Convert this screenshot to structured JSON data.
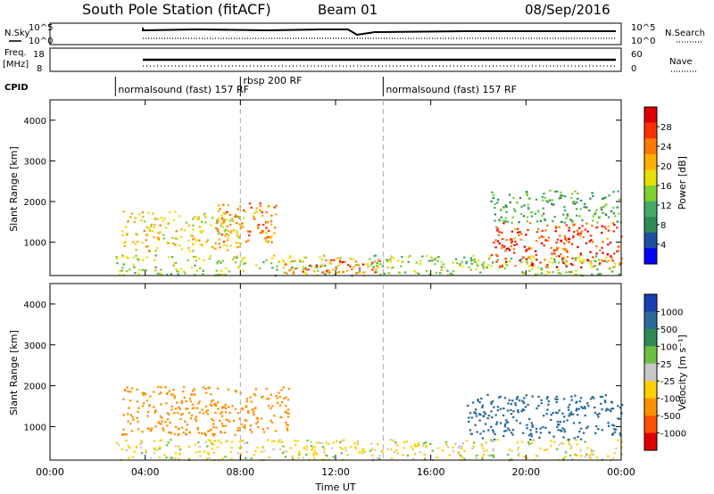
{
  "header": {
    "title": "South Pole Station (fitACF)",
    "beam": "Beam 01",
    "date": "08/Sep/2016"
  },
  "panels": {
    "nsky": {
      "left_label": "N.Sky",
      "right_label": "N.Search",
      "left_ticks": [
        "10^5",
        "10^0"
      ],
      "right_ticks": [
        "10^5",
        "10^0"
      ]
    },
    "freq": {
      "left_label_1": "Freq.",
      "left_label_2": "[MHz]",
      "right_label": "Nave",
      "left_ticks": [
        "18",
        "8"
      ],
      "right_ticks": [
        "60",
        "0"
      ]
    },
    "cpid": {
      "label": "CPID",
      "segments": [
        {
          "start_hour": 2.75,
          "text": "normalsound (fast) 157 RF"
        },
        {
          "start_hour": 8.0,
          "text": "rbsp 200 RF"
        },
        {
          "start_hour": 14.0,
          "text": "normalsound (fast) 157 RF"
        }
      ]
    }
  },
  "power_panel": {
    "ylabel": "Slant Range [km]",
    "yticks": [
      "1000",
      "2000",
      "3000",
      "4000"
    ],
    "colorbar": {
      "label": "Power [dB]",
      "ticks": [
        "4",
        "8",
        "12",
        "16",
        "20",
        "24",
        "28"
      ],
      "colors": [
        "#0000ff",
        "#1f4fa0",
        "#2e8b57",
        "#44aa66",
        "#7fd030",
        "#e8e000",
        "#ffb000",
        "#ff7a00",
        "#ff3000",
        "#dd0000"
      ]
    }
  },
  "velocity_panel": {
    "ylabel": "Slant Range [km]",
    "yticks": [
      "1000",
      "2000",
      "3000",
      "4000"
    ],
    "colorbar": {
      "label": "Velocity [m s⁻¹]",
      "ticks": [
        "1000",
        "500",
        "100",
        "25",
        "-25",
        "-100",
        "-500",
        "-1000"
      ],
      "colors": [
        "#1a3fb0",
        "#2a6a9a",
        "#2e8b57",
        "#6cc040",
        "#c8c8c8",
        "#ffd000",
        "#ff9000",
        "#ff5000",
        "#e00000"
      ]
    }
  },
  "xaxis": {
    "label": "Time UT",
    "ticks": [
      "00:00",
      "04:00",
      "08:00",
      "12:00",
      "16:00",
      "20:00",
      "00:00"
    ]
  },
  "chart_data": {
    "type": "heatmap",
    "title": "South Pole Station (fitACF)",
    "xlabel": "Time UT",
    "ylabel": "Slant Range [km]",
    "xlim_hours": [
      0,
      24
    ],
    "ylim_km": [
      180,
      4500
    ],
    "data_start_hour": 2.75,
    "power_regions": [
      {
        "t0": 2.75,
        "t1": 24,
        "r0": 200,
        "r1": 700,
        "value_db": 14
      },
      {
        "t0": 3.0,
        "t1": 8.0,
        "r0": 800,
        "r1": 1800,
        "value_db": 18
      },
      {
        "t0": 7.0,
        "t1": 9.5,
        "r0": 1000,
        "r1": 2000,
        "value_db": 22
      },
      {
        "t0": 9.5,
        "t1": 14.0,
        "r0": 250,
        "r1": 600,
        "value_db": 24
      },
      {
        "t0": 18.5,
        "t1": 24,
        "r0": 400,
        "r1": 1500,
        "value_db": 26
      },
      {
        "t0": 18.5,
        "t1": 24,
        "r0": 1500,
        "r1": 2300,
        "value_db": 10
      }
    ],
    "velocity_regions": [
      {
        "t0": 2.75,
        "t1": 24,
        "r0": 200,
        "r1": 700,
        "value_ms": -100
      },
      {
        "t0": 3.0,
        "t1": 10.0,
        "r0": 800,
        "r1": 2000,
        "value_ms": -500
      },
      {
        "t0": 17.5,
        "t1": 24,
        "r0": 700,
        "r1": 1800,
        "value_ms": 500
      }
    ]
  }
}
